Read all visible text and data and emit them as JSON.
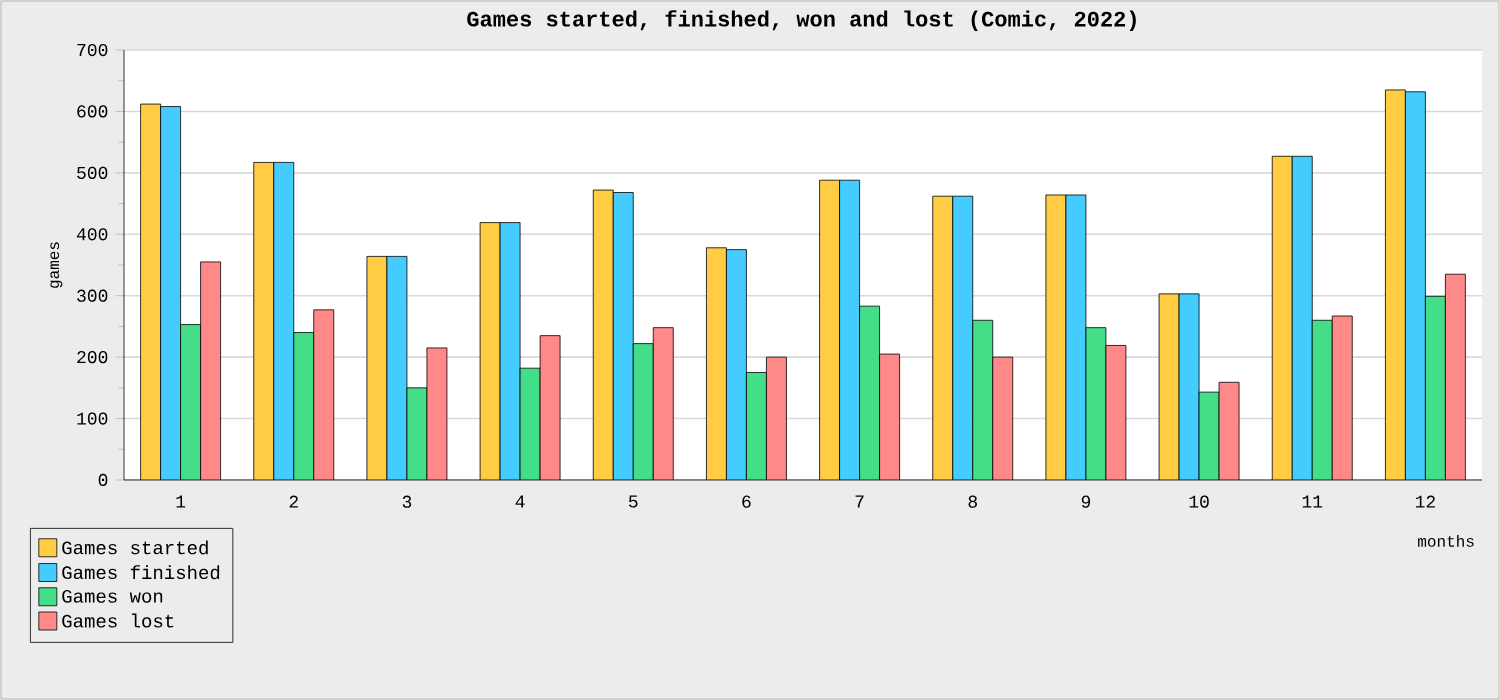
{
  "chart_data": {
    "type": "bar",
    "title": "Games started, finished, won and lost (Comic, 2022)",
    "xlabel": "months",
    "ylabel": "games",
    "categories": [
      "1",
      "2",
      "3",
      "4",
      "5",
      "6",
      "7",
      "8",
      "9",
      "10",
      "11",
      "12"
    ],
    "series": [
      {
        "name": "Games started",
        "color": "#ffcc44",
        "values": [
          612,
          517,
          364,
          419,
          472,
          378,
          488,
          462,
          464,
          303,
          527,
          635
        ]
      },
      {
        "name": "Games finished",
        "color": "#44ccff",
        "values": [
          608,
          517,
          364,
          419,
          468,
          375,
          488,
          462,
          464,
          303,
          527,
          632
        ]
      },
      {
        "name": "Games won",
        "color": "#44dd88",
        "values": [
          253,
          240,
          150,
          182,
          222,
          175,
          283,
          260,
          248,
          143,
          260,
          299
        ]
      },
      {
        "name": "Games lost",
        "color": "#ff8888",
        "values": [
          355,
          277,
          215,
          235,
          248,
          200,
          205,
          200,
          219,
          159,
          267,
          335
        ]
      }
    ],
    "ylim": [
      0,
      700
    ],
    "yticks": [
      0,
      100,
      200,
      300,
      400,
      500,
      600,
      700
    ],
    "grid": "y",
    "legend": "bottom left"
  }
}
